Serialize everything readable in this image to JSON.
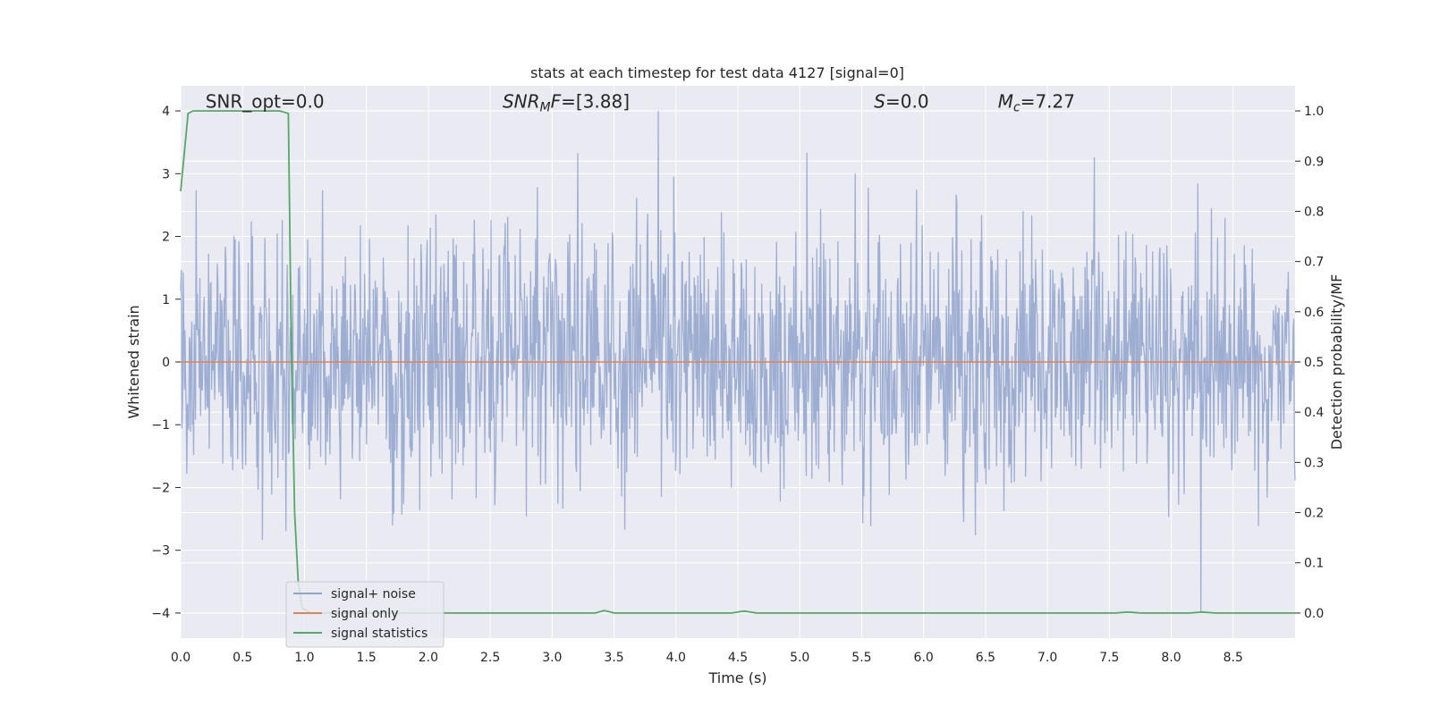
{
  "chart_data": {
    "type": "line",
    "title": "stats at each timestep for test data 4127 [signal=0]",
    "xlabel": "Time (s)",
    "ylabel_left": "Whitened strain",
    "ylabel_right": "Detection probability/MF",
    "xlim": [
      0.0,
      9.0
    ],
    "ylim_left": [
      -4.4,
      4.4
    ],
    "ylim_right": [
      -0.05,
      1.05
    ],
    "x_ticks": [
      0.0,
      0.5,
      1.0,
      1.5,
      2.0,
      2.5,
      3.0,
      3.5,
      4.0,
      4.5,
      5.0,
      5.5,
      6.0,
      6.5,
      7.0,
      7.5,
      8.0,
      8.5
    ],
    "x_tick_labels": [
      "0.0",
      "0.5",
      "1.0",
      "1.5",
      "2.0",
      "2.5",
      "3.0",
      "3.5",
      "4.0",
      "4.5",
      "5.0",
      "5.5",
      "6.0",
      "6.5",
      "7.0",
      "7.5",
      "8.0",
      "8.5"
    ],
    "y_left_ticks": [
      -4,
      -3,
      -2,
      -1,
      0,
      1,
      2,
      3,
      4
    ],
    "y_left_tick_labels": [
      "−4",
      "−3",
      "−2",
      "−1",
      "0",
      "1",
      "2",
      "3",
      "4"
    ],
    "y_right_ticks": [
      0.0,
      0.1,
      0.2,
      0.3,
      0.4,
      0.5,
      0.6,
      0.7,
      0.8,
      0.9,
      1.0
    ],
    "y_right_tick_labels": [
      "0.0",
      "0.1",
      "0.2",
      "0.3",
      "0.4",
      "0.5",
      "0.6",
      "0.7",
      "0.8",
      "0.9",
      "1.0"
    ],
    "grid": true,
    "legend_position": "lower-left",
    "annotations": [
      {
        "name": "snr-opt",
        "text": "SNR_opt=0.0",
        "x": 0.2,
        "y": 4.15
      },
      {
        "name": "snr-mf",
        "text": "SNR_MF=[3.88]",
        "x": 2.6,
        "y": 4.15
      },
      {
        "name": "s-value",
        "text": "S=0.0",
        "x": 5.6,
        "y": 4.15
      },
      {
        "name": "mc-value",
        "text": "M_c=7.27",
        "x": 6.6,
        "y": 4.15
      }
    ],
    "series": [
      {
        "name": "signal+ noise",
        "axis": "left",
        "color": "#8fa3cc",
        "style": "noise",
        "duration": 9.0,
        "samples": 1800,
        "typical_amplitude": 1.0,
        "peak_amplitude": 4.0
      },
      {
        "name": "signal only",
        "axis": "left",
        "color": "#dd8452",
        "x": [
          0.0,
          9.0
        ],
        "y": [
          0.0,
          0.0
        ]
      },
      {
        "name": "signal statistics",
        "axis": "right",
        "color": "#55a868",
        "x": [
          0.0,
          0.06,
          0.1,
          0.2,
          0.5,
          0.8,
          0.87,
          0.89,
          0.92,
          0.95,
          0.98,
          1.05,
          1.2,
          3.35,
          3.42,
          3.5,
          4.45,
          4.55,
          4.65,
          7.55,
          7.65,
          7.75,
          8.15,
          8.25,
          8.35,
          9.0
        ],
        "y": [
          0.84,
          0.995,
          1.0,
          1.0,
          1.0,
          1.0,
          0.995,
          0.6,
          0.2,
          0.06,
          0.01,
          0.0,
          0.0,
          0.0,
          0.005,
          0.0,
          0.0,
          0.004,
          0.0,
          0.0,
          0.002,
          0.0,
          0.0,
          0.002,
          0.0,
          0.0
        ]
      }
    ]
  }
}
